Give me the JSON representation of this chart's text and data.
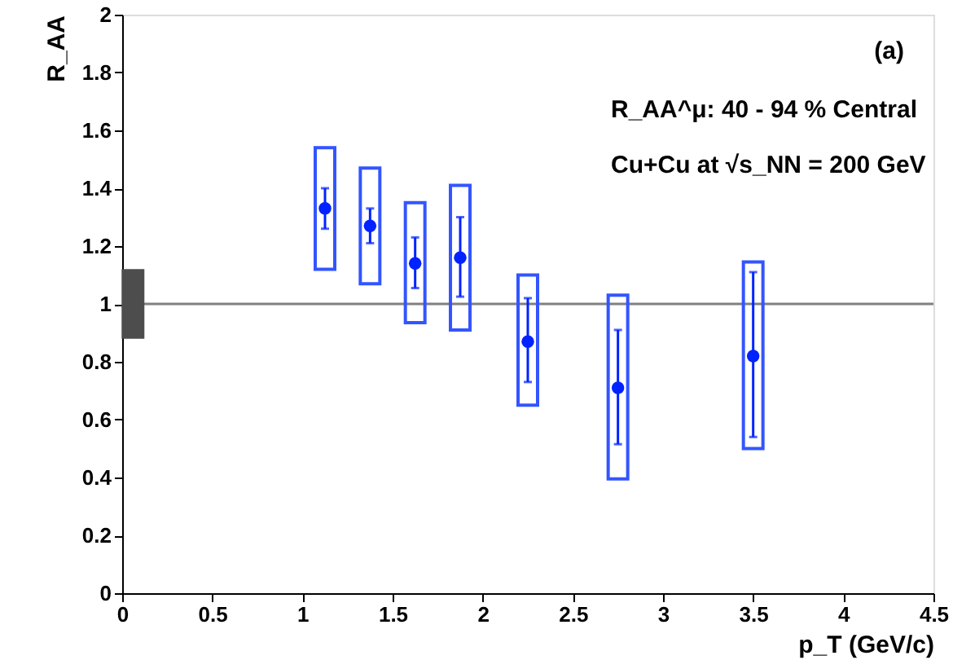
{
  "chart_data": {
    "type": "scatter",
    "xlabel": "p_T (GeV/c)",
    "ylabel": "R_AA",
    "annotations": [
      "(a)",
      "R_AA^μ: 40 - 94 % Central",
      "Cu+Cu at √s_NN = 200 GeV"
    ],
    "xlim": [
      0,
      4.5
    ],
    "xticks": [
      0,
      0.5,
      1,
      1.5,
      2,
      2.5,
      3,
      3.5,
      4,
      4.5
    ],
    "ylim": [
      0,
      2
    ],
    "yticks": [
      0,
      0.2,
      0.4,
      0.6,
      0.8,
      1,
      1.2,
      1.4,
      1.6,
      1.8,
      2
    ],
    "grid": false,
    "ref_lines": [
      {
        "axis": "y",
        "value": 1,
        "color": "#808080"
      }
    ],
    "series": [
      {
        "type": "bar",
        "color": "#3355ff",
        "x": [
          1.125,
          1.375,
          1.625,
          1.875,
          2.25,
          2.75,
          3.5
        ],
        "base": [
          1.12,
          1.07,
          0.935,
          0.91,
          0.65,
          0.395,
          0.5
        ],
        "values": [
          0.42,
          0.4,
          0.415,
          0.5,
          0.45,
          0.635,
          0.645
        ]
      },
      {
        "type": "bar",
        "color": "#4d4d4d",
        "x": [
          0.06
        ],
        "base": [
          0.885
        ],
        "values": [
          0.23
        ]
      },
      {
        "color": "#0022ff",
        "marker": "circle",
        "x": [
          1.125,
          1.375,
          1.625,
          1.875,
          2.25,
          2.75,
          3.5
        ],
        "values": [
          1.33,
          1.27,
          1.14,
          1.16,
          0.87,
          0.71,
          0.82
        ],
        "errors": [
          [
            1.26,
            1.4
          ],
          [
            1.21,
            1.33
          ],
          [
            1.055,
            1.23
          ],
          [
            1.025,
            1.3
          ],
          [
            0.73,
            1.02
          ],
          [
            0.515,
            0.91
          ],
          [
            0.54,
            1.11
          ]
        ]
      }
    ]
  }
}
